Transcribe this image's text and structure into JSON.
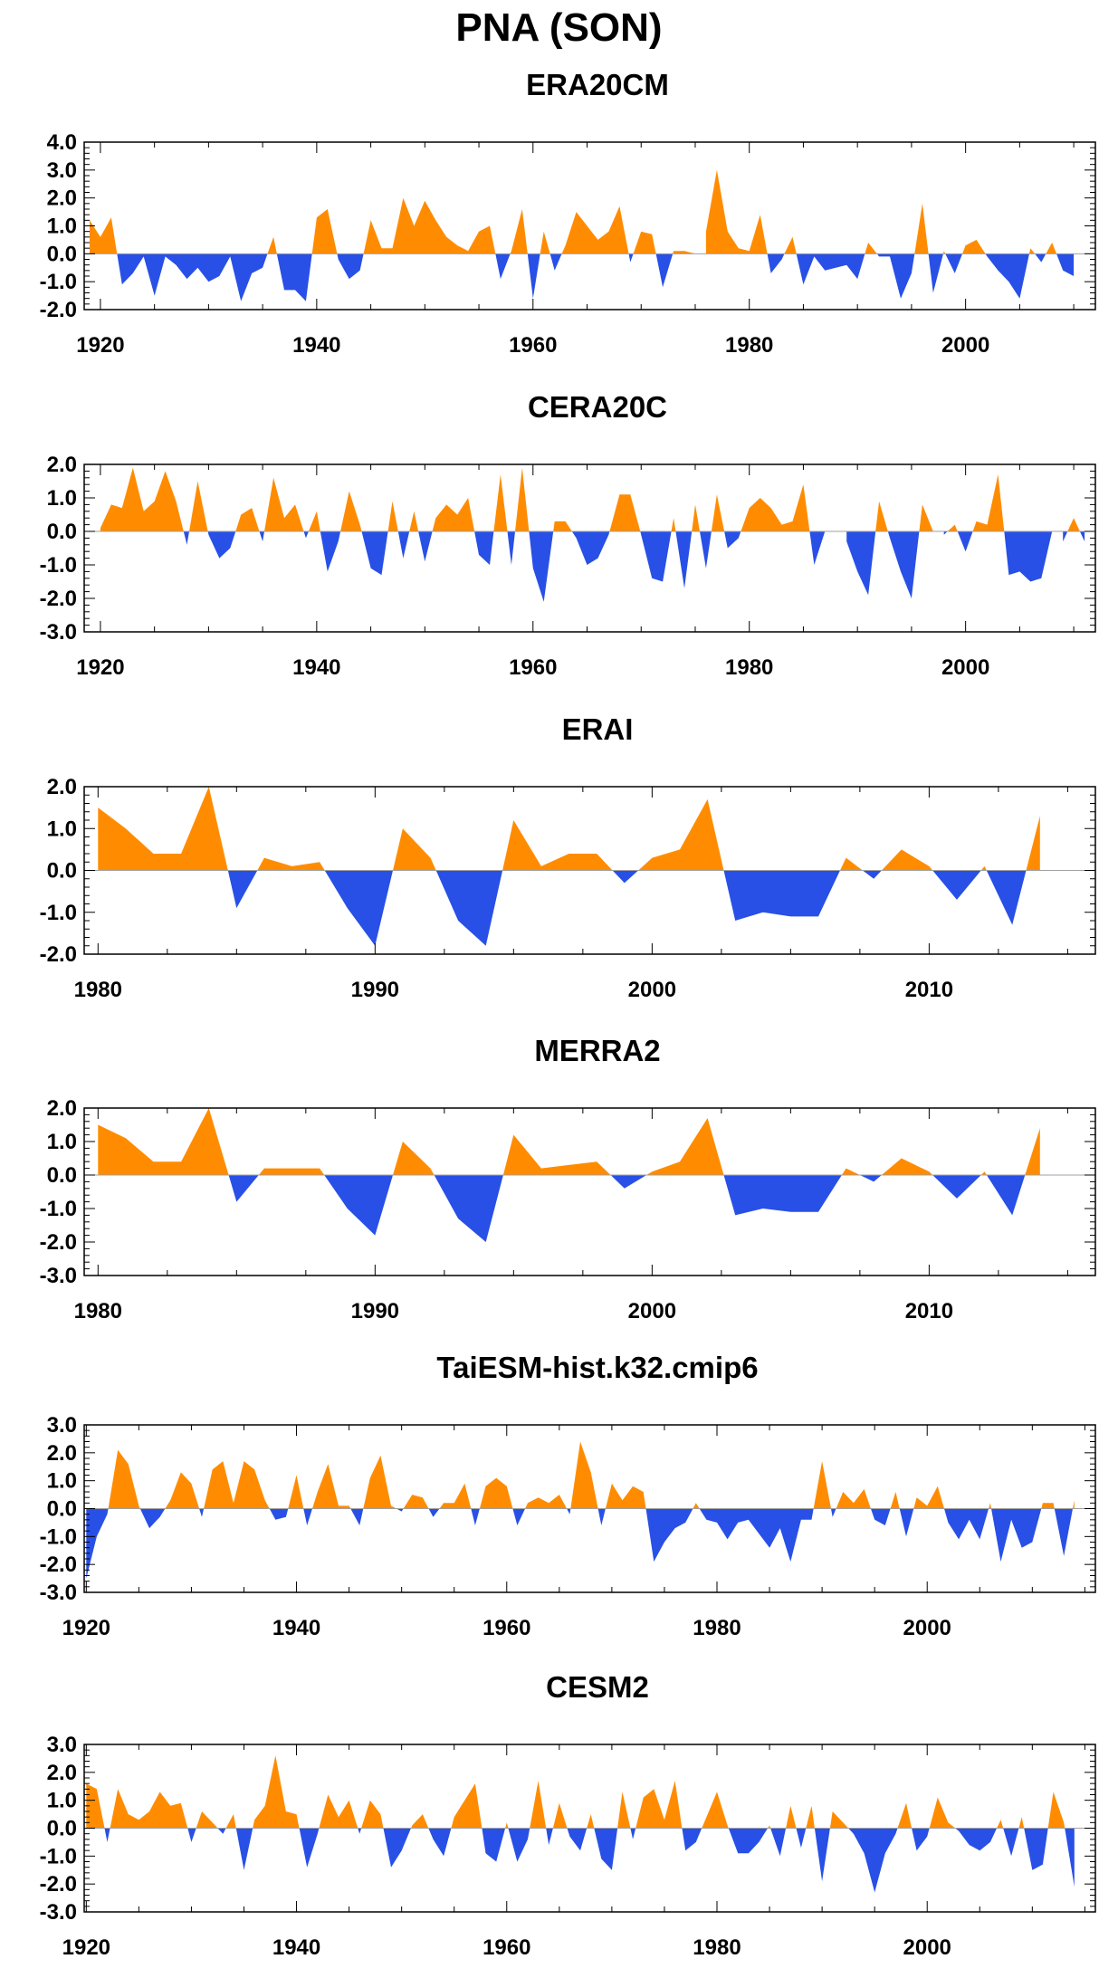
{
  "title": "PNA (SON)",
  "colors": {
    "positive": "#ff8c00",
    "negative": "#2850e6",
    "axis": "#000000",
    "zero_line": "#a0a0a0"
  },
  "chart_data": [
    {
      "type": "area",
      "title": "ERA20CM",
      "xlabel": "",
      "ylabel": "",
      "xlim": [
        1918.5,
        2012
      ],
      "ylim": [
        -2.0,
        4.0
      ],
      "xticks": [
        "1920",
        "1940",
        "1960",
        "1980",
        "2000"
      ],
      "yticks": [
        "4.0",
        "3.0",
        "2.0",
        "1.0",
        "0.0",
        "-1.0",
        "-2.0"
      ],
      "x_start": 1919,
      "values": [
        1.2,
        0.6,
        1.3,
        -1.1,
        -0.7,
        -0.1,
        -1.5,
        -0.1,
        -0.4,
        -0.9,
        -0.5,
        -1.0,
        -0.8,
        -0.1,
        -1.7,
        -0.7,
        -0.5,
        0.6,
        -1.3,
        -1.3,
        -1.7,
        1.3,
        1.6,
        -0.2,
        -0.9,
        -0.6,
        1.2,
        0.2,
        0.2,
        2.0,
        1.0,
        1.9,
        1.2,
        0.6,
        0.3,
        0.1,
        0.8,
        1.0,
        -0.9,
        0.1,
        1.6,
        -1.6,
        0.8,
        -0.6,
        0.3,
        1.5,
        1.0,
        0.5,
        0.8,
        1.7,
        -0.3,
        0.8,
        0.7,
        -1.2,
        0.1,
        0.1,
        0.0,
        0.8,
        3.0,
        0.8,
        0.2,
        0.1,
        1.4,
        -0.7,
        -0.2,
        0.6,
        -1.1,
        -0.1,
        -0.6,
        -0.5,
        -0.4,
        -0.9,
        0.4,
        -0.1,
        -0.1,
        -1.6,
        -0.7,
        1.8,
        -1.4,
        0.1,
        -0.7,
        0.3,
        0.5,
        -0.1,
        -0.6,
        -1.0,
        -1.6,
        0.2,
        -0.3,
        0.4,
        -0.6,
        -0.8
      ]
    },
    {
      "type": "area",
      "title": "CERA20C",
      "xlabel": "",
      "ylabel": "",
      "xlim": [
        1918.5,
        2012
      ],
      "ylim": [
        -3.0,
        2.0
      ],
      "xticks": [
        "1920",
        "1940",
        "1960",
        "1980",
        "2000"
      ],
      "yticks": [
        "2.0",
        "1.0",
        "0.0",
        "-1.0",
        "-2.0",
        "-3.0"
      ],
      "x_start": 1920,
      "values": [
        0.1,
        0.8,
        0.7,
        1.9,
        0.6,
        0.9,
        1.8,
        0.9,
        -0.4,
        1.5,
        -0.1,
        -0.8,
        -0.5,
        0.5,
        0.7,
        -0.3,
        1.6,
        0.4,
        0.8,
        -0.2,
        0.6,
        -1.2,
        -0.3,
        1.2,
        0.2,
        -1.1,
        -1.3,
        0.9,
        -0.8,
        0.6,
        -0.9,
        0.4,
        0.8,
        0.5,
        1.0,
        -0.7,
        -1.0,
        1.7,
        -1.0,
        1.9,
        -1.1,
        -2.1,
        0.3,
        0.3,
        -0.2,
        -1.0,
        -0.8,
        -0.1,
        1.1,
        1.1,
        -0.1,
        -1.4,
        -1.5,
        0.4,
        -1.7,
        0.8,
        -1.1,
        1.1,
        -0.5,
        -0.2,
        0.7,
        1.0,
        0.7,
        0.2,
        0.3,
        1.4,
        -1.0,
        0.0,
        0.0,
        -0.3,
        -1.2,
        -1.9,
        0.9,
        -0.2,
        -1.2,
        -2.0,
        0.8,
        0.0,
        -0.1,
        0.2,
        -0.6,
        0.3,
        0.2,
        1.7,
        -1.3,
        -1.2,
        -1.5,
        -1.4,
        0.0,
        -0.3,
        0.4,
        -0.3
      ]
    },
    {
      "type": "area",
      "title": "ERAI",
      "xlabel": "",
      "ylabel": "",
      "xlim": [
        1979.5,
        2016
      ],
      "ylim": [
        -2.0,
        2.0
      ],
      "xticks": [
        "1980",
        "1990",
        "2000",
        "2010"
      ],
      "yticks": [
        "2.0",
        "1.0",
        "0.0",
        "-1.0",
        "-2.0"
      ],
      "x_start": 1980,
      "values": [
        1.5,
        1.0,
        0.4,
        0.4,
        2.0,
        -0.9,
        0.3,
        0.1,
        0.2,
        -0.9,
        -1.8,
        1.0,
        0.3,
        -1.2,
        -1.8,
        1.2,
        0.1,
        0.4,
        0.4,
        -0.3,
        0.3,
        0.5,
        1.7,
        -1.2,
        -1.0,
        -1.1,
        -1.1,
        0.3,
        -0.2,
        0.5,
        0.1,
        -0.7,
        0.1,
        -1.3,
        1.3
      ]
    },
    {
      "type": "area",
      "title": "MERRA2",
      "xlabel": "",
      "ylabel": "",
      "xlim": [
        1979.5,
        2016
      ],
      "ylim": [
        -3.0,
        2.0
      ],
      "xticks": [
        "1980",
        "1990",
        "2000",
        "2010"
      ],
      "yticks": [
        "2.0",
        "1.0",
        "0.0",
        "-1.0",
        "-2.0",
        "-3.0"
      ],
      "x_start": 1980,
      "values": [
        1.5,
        1.1,
        0.4,
        0.4,
        2.0,
        -0.8,
        0.2,
        0.2,
        0.2,
        -1.0,
        -1.8,
        1.0,
        0.2,
        -1.3,
        -2.0,
        1.2,
        0.2,
        0.3,
        0.4,
        -0.4,
        0.1,
        0.4,
        1.7,
        -1.2,
        -1.0,
        -1.1,
        -1.1,
        0.2,
        -0.2,
        0.5,
        0.1,
        -0.7,
        0.1,
        -1.2,
        1.4
      ]
    },
    {
      "type": "area",
      "title": "TaiESM-hist.k32.cmip6",
      "xlabel": "",
      "ylabel": "",
      "xlim": [
        1919.8,
        2016
      ],
      "ylim": [
        -3.0,
        3.0
      ],
      "xticks": [
        "1920",
        "1940",
        "1960",
        "1980",
        "2000"
      ],
      "yticks": [
        "3.0",
        "2.0",
        "1.0",
        "0.0",
        "-1.0",
        "-2.0",
        "-3.0"
      ],
      "x_start": 1920,
      "values": [
        -2.5,
        -1.0,
        -0.2,
        2.1,
        1.6,
        0.1,
        -0.7,
        -0.3,
        0.3,
        1.3,
        0.9,
        -0.3,
        1.4,
        1.7,
        0.2,
        1.7,
        1.4,
        0.3,
        -0.4,
        -0.3,
        1.2,
        -0.6,
        0.6,
        1.6,
        0.1,
        0.1,
        -0.6,
        1.1,
        1.9,
        0.1,
        -0.1,
        0.5,
        0.4,
        -0.3,
        0.2,
        0.2,
        0.9,
        -0.6,
        0.8,
        1.1,
        0.8,
        -0.6,
        0.2,
        0.4,
        0.2,
        0.5,
        -0.2,
        2.4,
        1.3,
        -0.6,
        0.9,
        0.3,
        0.8,
        0.6,
        -1.9,
        -1.2,
        -0.7,
        -0.5,
        0.2,
        -0.4,
        -0.5,
        -1.1,
        -0.5,
        -0.4,
        -0.9,
        -1.4,
        -0.7,
        -1.9,
        -0.4,
        -0.4,
        1.7,
        -0.3,
        0.6,
        0.2,
        0.7,
        -0.4,
        -0.6,
        0.6,
        -1.0,
        0.4,
        0.1,
        0.8,
        -0.5,
        -1.1,
        -0.4,
        -1.1,
        0.2,
        -1.9,
        -0.4,
        -1.4,
        -1.2,
        0.2,
        0.2,
        -1.7,
        0.3
      ]
    },
    {
      "type": "area",
      "title": "CESM2",
      "xlabel": "",
      "ylabel": "",
      "xlim": [
        1919.8,
        2016
      ],
      "ylim": [
        -3.0,
        3.0
      ],
      "xticks": [
        "1920",
        "1940",
        "1960",
        "1980",
        "2000"
      ],
      "yticks": [
        "3.0",
        "2.0",
        "1.0",
        "0.0",
        "-1.0",
        "-2.0",
        "-3.0"
      ],
      "x_start": 1920,
      "values": [
        1.6,
        1.4,
        -0.5,
        1.4,
        0.5,
        0.3,
        0.6,
        1.3,
        0.8,
        0.9,
        -0.5,
        0.6,
        0.2,
        -0.2,
        0.5,
        -1.5,
        0.3,
        0.8,
        2.6,
        0.6,
        0.5,
        -1.4,
        -0.2,
        1.2,
        0.4,
        1.0,
        -0.2,
        1.0,
        0.5,
        -1.4,
        -0.8,
        0.1,
        0.5,
        -0.4,
        -1.0,
        0.4,
        1.0,
        1.6,
        -0.9,
        -1.2,
        0.2,
        -1.2,
        -0.4,
        1.7,
        -0.6,
        0.9,
        -0.3,
        -0.8,
        0.5,
        -1.1,
        -1.5,
        1.3,
        -0.4,
        1.1,
        1.4,
        0.3,
        1.7,
        -0.8,
        -0.5,
        0.4,
        1.3,
        0.1,
        -0.9,
        -0.9,
        -0.5,
        0.1,
        -1.0,
        0.8,
        -0.7,
        0.8,
        -1.9,
        0.6,
        0.2,
        -0.2,
        -0.9,
        -2.3,
        -0.9,
        -0.2,
        0.9,
        -0.8,
        -0.3,
        1.1,
        0.2,
        -0.1,
        -0.6,
        -0.8,
        -0.5,
        0.3,
        -1.0,
        0.4,
        -1.5,
        -1.3,
        1.3,
        0.2,
        -2.1
      ]
    }
  ]
}
